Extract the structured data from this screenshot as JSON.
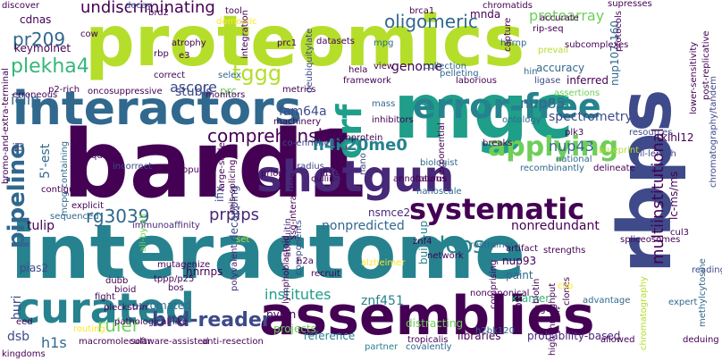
{
  "words": [
    {
      "text": "proteomics",
      "color": "#b5de2b",
      "v": false
    },
    {
      "text": "interactome",
      "color": "#26828e",
      "v": false
    },
    {
      "text": "bard1",
      "color": "#440154",
      "v": false
    },
    {
      "text": "mgc",
      "color": "#1f9e89",
      "v": false
    },
    {
      "text": "assemblies",
      "color": "#440154",
      "v": false
    },
    {
      "text": "rbps",
      "color": "#3e4a89",
      "v": true
    },
    {
      "text": "interactors",
      "color": "#31688e",
      "v": false
    },
    {
      "text": "shotgun",
      "color": "#482878",
      "v": false
    },
    {
      "text": "curated",
      "color": "#26828e",
      "v": false
    },
    {
      "text": "systematic",
      "color": "#440154",
      "v": false
    },
    {
      "text": "error-free",
      "color": "#26828e",
      "v": false
    },
    {
      "text": "applying",
      "color": "#6ece58",
      "v": false
    },
    {
      "text": "orf",
      "color": "#1f9e89",
      "v": true
    },
    {
      "text": "pipeline",
      "color": "#31688e",
      "v": true
    },
    {
      "text": "brd-reader",
      "color": "#3e4a89",
      "v": false
    },
    {
      "text": "h4k20me0",
      "color": "#26828e",
      "v": false
    },
    {
      "text": "comprehensive",
      "color": "#440154",
      "v": false
    },
    {
      "text": "ruler",
      "color": "#6ece58",
      "v": false
    },
    {
      "text": "rg3039",
      "color": "#31688e",
      "v": false
    },
    {
      "text": "dcps",
      "color": "#26828e",
      "v": false
    },
    {
      "text": "plekha4",
      "color": "#35b779",
      "v": false
    },
    {
      "text": "pr209",
      "color": "#31688e",
      "v": false
    },
    {
      "text": "ascore",
      "color": "#3e4a89",
      "v": false
    },
    {
      "text": "tggg",
      "color": "#b5de2b",
      "v": false
    },
    {
      "text": "undiscriminating",
      "color": "#440154",
      "v": false
    },
    {
      "text": "oligomeric",
      "color": "#31688e",
      "v": false
    },
    {
      "text": "protoarray",
      "color": "#6ece58",
      "v": false
    },
    {
      "text": "multiinstitutional",
      "color": "#440154",
      "v": true
    },
    {
      "text": "nup85",
      "color": "#31688e",
      "v": false
    },
    {
      "text": "nup43",
      "color": "#31688e",
      "v": false
    },
    {
      "text": "prpips",
      "color": "#482878",
      "v": false
    },
    {
      "text": "institutes",
      "color": "#1f9e89",
      "v": false
    },
    {
      "text": "nonpredicted",
      "color": "#31688e",
      "v": false
    },
    {
      "text": "nonredundant",
      "color": "#440154",
      "v": false
    },
    {
      "text": "spectrometry",
      "color": "#3e4a89",
      "v": false
    },
    {
      "text": "fam64a",
      "color": "#3e4a89",
      "v": false
    },
    {
      "text": "genome",
      "color": "#440154",
      "v": false
    },
    {
      "text": "iclip",
      "color": "#31688e",
      "v": false
    },
    {
      "text": "stubls",
      "color": "#3e4a89",
      "v": false
    },
    {
      "text": "prc",
      "color": "#6ece58",
      "v": false
    },
    {
      "text": "tulip",
      "color": "#440154",
      "v": false
    },
    {
      "text": "huri",
      "color": "#3e4a89",
      "v": true
    },
    {
      "text": "5'-est",
      "color": "#31688e",
      "v": true
    },
    {
      "text": "h1s",
      "color": "#31688e",
      "v": false
    },
    {
      "text": "dsb",
      "color": "#3e4a89",
      "v": false
    },
    {
      "text": "mnda",
      "color": "#440154",
      "v": false
    },
    {
      "text": "nup107-160",
      "color": "#31688e",
      "v": true
    },
    {
      "text": "lc-ms/ms",
      "color": "#440154",
      "v": true
    },
    {
      "text": "klhl12",
      "color": "#440154",
      "v": false
    },
    {
      "text": "nsmce2",
      "color": "#482878",
      "v": false
    },
    {
      "text": "znf451",
      "color": "#26828e",
      "v": false
    },
    {
      "text": "kramer",
      "color": "#35b779",
      "v": false
    },
    {
      "text": "pyhin",
      "color": "#440154",
      "v": false
    },
    {
      "text": "psms",
      "color": "#26828e",
      "v": true
    },
    {
      "text": "build-up",
      "color": "#26828e",
      "v": true
    },
    {
      "text": "nup93",
      "color": "#440154",
      "v": false
    },
    {
      "text": "paint",
      "color": "#31688e",
      "v": false
    },
    {
      "text": "hnrnps",
      "color": "#440154",
      "v": false
    },
    {
      "text": "ifix",
      "color": "#3e4a89",
      "v": true
    },
    {
      "text": "decapping",
      "color": "#3e4a89",
      "v": true
    },
    {
      "text": "flj",
      "color": "#3e4a89",
      "v": true
    },
    {
      "text": "accuracy",
      "color": "#31688e",
      "v": false
    },
    {
      "text": "inferred",
      "color": "#440154",
      "v": false
    },
    {
      "text": "hin",
      "color": "#31688e",
      "v": false
    },
    {
      "text": "ubiquitin",
      "color": "#482878",
      "v": true
    },
    {
      "text": "automated",
      "color": "#31688e",
      "v": false
    },
    {
      "text": "distracting",
      "color": "#6ece58",
      "v": false
    },
    {
      "text": "libraries",
      "color": "#440154",
      "v": false
    },
    {
      "text": "reference",
      "color": "#26828e",
      "v": false
    },
    {
      "text": "probability-based",
      "color": "#482878",
      "v": false
    },
    {
      "text": "h2bk120",
      "color": "#31688e",
      "v": false
    },
    {
      "text": "dsbs",
      "color": "#440154",
      "v": true
    },
    {
      "text": "projects",
      "color": "#6ece58",
      "v": false
    },
    {
      "text": "keymolnet",
      "color": "#440154",
      "v": false
    },
    {
      "text": "cdnas",
      "color": "#440154",
      "v": false
    },
    {
      "text": "ligase",
      "color": "#3e4a89",
      "v": false
    },
    {
      "text": "ontology",
      "color": "#31688e",
      "v": false
    },
    {
      "text": "collection",
      "color": "#31688e",
      "v": false
    },
    {
      "text": "laborious",
      "color": "#440154",
      "v": false
    },
    {
      "text": "pelleting",
      "color": "#31688e",
      "v": false
    },
    {
      "text": "machinery",
      "color": "#440154",
      "v": false
    },
    {
      "text": "co-enriched",
      "color": "#3e4a89",
      "v": false
    },
    {
      "text": "mutagenize",
      "color": "#440154",
      "v": false
    },
    {
      "text": "tppp/p25",
      "color": "#440154",
      "v": false
    },
    {
      "text": "pias2",
      "color": "#3e4a89",
      "v": false
    },
    {
      "text": "polyvalent",
      "color": "#482878",
      "v": true
    },
    {
      "text": "all-by-all",
      "color": "#6ece58",
      "v": true
    },
    {
      "text": "mis-splicing",
      "color": "#440154",
      "v": true
    },
    {
      "text": "selex",
      "color": "#31688e",
      "v": false
    },
    {
      "text": "mpg",
      "color": "#31688e",
      "v": false
    },
    {
      "text": "deubiquitylate",
      "color": "#3e4a89",
      "v": true
    },
    {
      "text": "decay",
      "color": "#3e4a89",
      "v": false
    },
    {
      "text": "reading",
      "color": "#3e4a89",
      "v": false
    },
    {
      "text": "nanoscale",
      "color": "#31688e",
      "v": false
    },
    {
      "text": "national",
      "color": "#31688e",
      "v": false
    },
    {
      "text": "assertions",
      "color": "#6ece58",
      "v": false
    },
    {
      "text": "set",
      "color": "#b5de2b",
      "v": false
    },
    {
      "text": "components",
      "color": "#3e4a89",
      "v": true
    },
    {
      "text": "taurus",
      "color": "#440154",
      "v": false
    },
    {
      "text": "biologist",
      "color": "#31688e",
      "v": false
    },
    {
      "text": "mass",
      "color": "#31688e",
      "v": false
    },
    {
      "text": "expert",
      "color": "#31688e",
      "v": false
    },
    {
      "text": "biotin",
      "color": "#440154",
      "v": true
    },
    {
      "text": "partner",
      "color": "#26828e",
      "v": false
    },
    {
      "text": "covalently",
      "color": "#31688e",
      "v": false
    },
    {
      "text": "hnrnp",
      "color": "#31688e",
      "v": false
    },
    {
      "text": "capture",
      "color": "#440154",
      "v": true
    },
    {
      "text": "protocols",
      "color": "#440154",
      "v": true
    },
    {
      "text": "post-replicative",
      "color": "#440154",
      "v": true
    },
    {
      "text": "chromatography/tandem",
      "color": "#3e4a89",
      "v": true
    },
    {
      "text": "full-length",
      "color": "#3e4a89",
      "v": false
    },
    {
      "text": "delineate",
      "color": "#440154",
      "v": false
    },
    {
      "text": "recombinantly",
      "color": "#31688e",
      "v": false
    },
    {
      "text": "blueprint",
      "color": "#b5de2b",
      "v": false
    },
    {
      "text": "breaks",
      "color": "#440154",
      "v": false
    },
    {
      "text": "exponential",
      "color": "#440154",
      "v": true
    },
    {
      "text": "mcpg-containing",
      "color": "#31688e",
      "v": true
    },
    {
      "text": "contiguity",
      "color": "#440154",
      "v": false
    },
    {
      "text": "explicit",
      "color": "#440154",
      "v": false
    },
    {
      "text": "sequenced",
      "color": "#31688e",
      "v": false
    },
    {
      "text": "immunoaffinity",
      "color": "#482878",
      "v": false
    },
    {
      "text": "large-scale",
      "color": "#440154",
      "v": true
    },
    {
      "text": "incorrect",
      "color": "#3e4a89",
      "v": false
    },
    {
      "text": "qualify",
      "color": "#440154",
      "v": false
    },
    {
      "text": "prion",
      "color": "#440154",
      "v": false
    },
    {
      "text": "radius",
      "color": "#3e4a89",
      "v": false
    },
    {
      "text": "ifi16",
      "color": "#440154",
      "v": false
    },
    {
      "text": "nano",
      "color": "#3e4a89",
      "v": true
    },
    {
      "text": "cullin-3",
      "color": "#440154",
      "v": false
    },
    {
      "text": "resources",
      "color": "#3e4a89",
      "v": false
    },
    {
      "text": "restrainer",
      "color": "#31688e",
      "v": false
    },
    {
      "text": "artifact",
      "color": "#440154",
      "v": false
    },
    {
      "text": "znf4",
      "color": "#440154",
      "v": false
    },
    {
      "text": "clones",
      "color": "#440154",
      "v": true
    },
    {
      "text": "strengths",
      "color": "#440154",
      "v": false
    },
    {
      "text": "figure",
      "color": "#440154",
      "v": false
    },
    {
      "text": "advantage",
      "color": "#31688e",
      "v": false
    },
    {
      "text": "methylcytosine",
      "color": "#31688e",
      "v": true
    },
    {
      "text": "deduing",
      "color": "#440154",
      "v": false
    },
    {
      "text": "allowed",
      "color": "#440154",
      "v": false
    },
    {
      "text": "kingdoms",
      "color": "#440154",
      "v": false
    },
    {
      "text": "macromolecular",
      "color": "#440154",
      "v": false
    },
    {
      "text": "software-assisted",
      "color": "#440154",
      "v": false
    },
    {
      "text": "anti-resection",
      "color": "#440154",
      "v": false
    },
    {
      "text": "pathological-like",
      "color": "#440154",
      "v": false
    },
    {
      "text": "routing",
      "color": "#fde725",
      "v": false
    },
    {
      "text": "fight",
      "color": "#440154",
      "v": false
    },
    {
      "text": "bioid",
      "color": "#440154",
      "v": false
    },
    {
      "text": "pleckstrin",
      "color": "#440154",
      "v": false
    },
    {
      "text": "dubb",
      "color": "#440154",
      "v": false
    },
    {
      "text": "eed",
      "color": "#440154",
      "v": false
    },
    {
      "text": "bos",
      "color": "#440154",
      "v": false
    },
    {
      "text": "e3",
      "color": "#440154",
      "v": false
    },
    {
      "text": "rbp",
      "color": "#440154",
      "v": false
    },
    {
      "text": "atrophy",
      "color": "#440154",
      "v": false
    },
    {
      "text": "correct",
      "color": "#440154",
      "v": false
    },
    {
      "text": "oncosuppressive",
      "color": "#440154",
      "v": false
    },
    {
      "text": "erroneous",
      "color": "#440154",
      "v": false
    },
    {
      "text": "p2-rich",
      "color": "#440154",
      "v": false
    },
    {
      "text": "monitors",
      "color": "#440154",
      "v": false
    },
    {
      "text": "metrics",
      "color": "#440154",
      "v": false
    },
    {
      "text": "framework",
      "color": "#440154",
      "v": false
    },
    {
      "text": "hela",
      "color": "#440154",
      "v": false
    },
    {
      "text": "datasets",
      "color": "#440154",
      "v": false
    },
    {
      "text": "prc1",
      "color": "#440154",
      "v": false
    },
    {
      "text": "view",
      "color": "#440154",
      "v": false
    },
    {
      "text": "brd2",
      "color": "#440154",
      "v": false
    },
    {
      "text": "discover",
      "color": "#440154",
      "v": false
    },
    {
      "text": "cow",
      "color": "#440154",
      "v": false
    },
    {
      "text": "tool",
      "color": "#440154",
      "v": false
    },
    {
      "text": "domestic",
      "color": "#fde725",
      "v": false
    },
    {
      "text": "brca1",
      "color": "#440154",
      "v": false
    },
    {
      "text": "chromatids",
      "color": "#440154",
      "v": false
    },
    {
      "text": "accurate",
      "color": "#440154",
      "v": false
    },
    {
      "text": "supresses",
      "color": "#440154",
      "v": false
    },
    {
      "text": "rip-seq",
      "color": "#440154",
      "v": false
    },
    {
      "text": "prevail",
      "color": "#b5de2b",
      "v": false
    },
    {
      "text": "subcomplexes",
      "color": "#440154",
      "v": false
    },
    {
      "text": "bromo-and-extra-terminal",
      "color": "#440154",
      "v": true
    },
    {
      "text": "integration",
      "color": "#440154",
      "v": true
    },
    {
      "text": "ssg-interaction",
      "color": "#440154",
      "v": true
    },
    {
      "text": "xenopus",
      "color": "#440154",
      "v": false
    },
    {
      "text": "h2a",
      "color": "#440154",
      "v": false
    },
    {
      "text": "recruit",
      "color": "#440154",
      "v": false
    },
    {
      "text": "alzheimer",
      "color": "#fde725",
      "v": false
    },
    {
      "text": "annotations",
      "color": "#440154",
      "v": false
    },
    {
      "text": "plk3",
      "color": "#440154",
      "v": false
    },
    {
      "text": "spliceosomes",
      "color": "#440154",
      "v": false
    },
    {
      "text": "clip",
      "color": "#fde725",
      "v": false
    },
    {
      "text": "cul3",
      "color": "#440154",
      "v": false
    },
    {
      "text": "tropicalis",
      "color": "#440154",
      "v": false
    },
    {
      "text": "network",
      "color": "#440154",
      "v": false
    },
    {
      "text": "lymphoblastoid",
      "color": "#440154",
      "v": true
    },
    {
      "text": "chromatography",
      "color": "#b5de2b",
      "v": true
    },
    {
      "text": "nonprotein",
      "color": "#440154",
      "v": false
    },
    {
      "text": "inhibitors",
      "color": "#440154",
      "v": false
    },
    {
      "text": "noncanonical",
      "color": "#440154",
      "v": false
    },
    {
      "text": "comprising",
      "color": "#440154",
      "v": true
    },
    {
      "text": "lower-sensitivity",
      "color": "#440154",
      "v": true
    },
    {
      "text": "high-throughput",
      "color": "#440154",
      "v": true
    }
  ]
}
